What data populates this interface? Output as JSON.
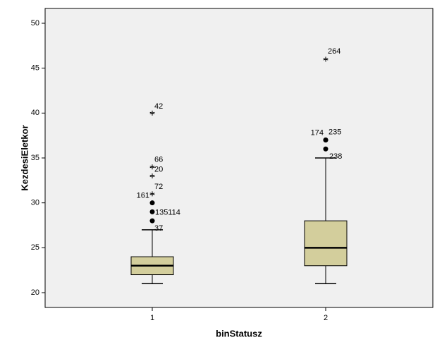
{
  "chart_data": {
    "type": "box",
    "x_label": "binStatusz",
    "y_label": "KezdesiEletkor",
    "categories": [
      "1",
      "2"
    ],
    "boxes": [
      {
        "whisker_low": 21,
        "q1": 22,
        "median": 23,
        "q3": 24,
        "whisker_high": 27,
        "outliers": [
          {
            "value": 28,
            "label": "37",
            "symbol": "circle"
          },
          {
            "value": 29,
            "label": "135114",
            "symbol": "circle"
          },
          {
            "value": 30,
            "label": "161",
            "symbol": "circle"
          },
          {
            "value": 31,
            "label": "72",
            "symbol": "star"
          },
          {
            "value": 33,
            "label": "20",
            "symbol": "star"
          },
          {
            "value": 34,
            "label": "66",
            "symbol": "star"
          },
          {
            "value": 40,
            "label": "42",
            "symbol": "star"
          }
        ]
      },
      {
        "whisker_low": 21,
        "q1": 23,
        "median": 25,
        "q3": 28,
        "whisker_high": 35,
        "outliers": [
          {
            "value": 36,
            "label": "238",
            "symbol": "circle"
          },
          {
            "value": 37,
            "label": "174",
            "symbol": "circle"
          },
          {
            "value": 37,
            "label": "235",
            "symbol": "circle"
          },
          {
            "value": 46,
            "label": "264",
            "symbol": "star"
          }
        ]
      }
    ],
    "color": "#d3ce9c",
    "ylim": [
      18.35,
      51.65
    ],
    "yticks": [
      20,
      25,
      30,
      35,
      40,
      45,
      50
    ]
  }
}
